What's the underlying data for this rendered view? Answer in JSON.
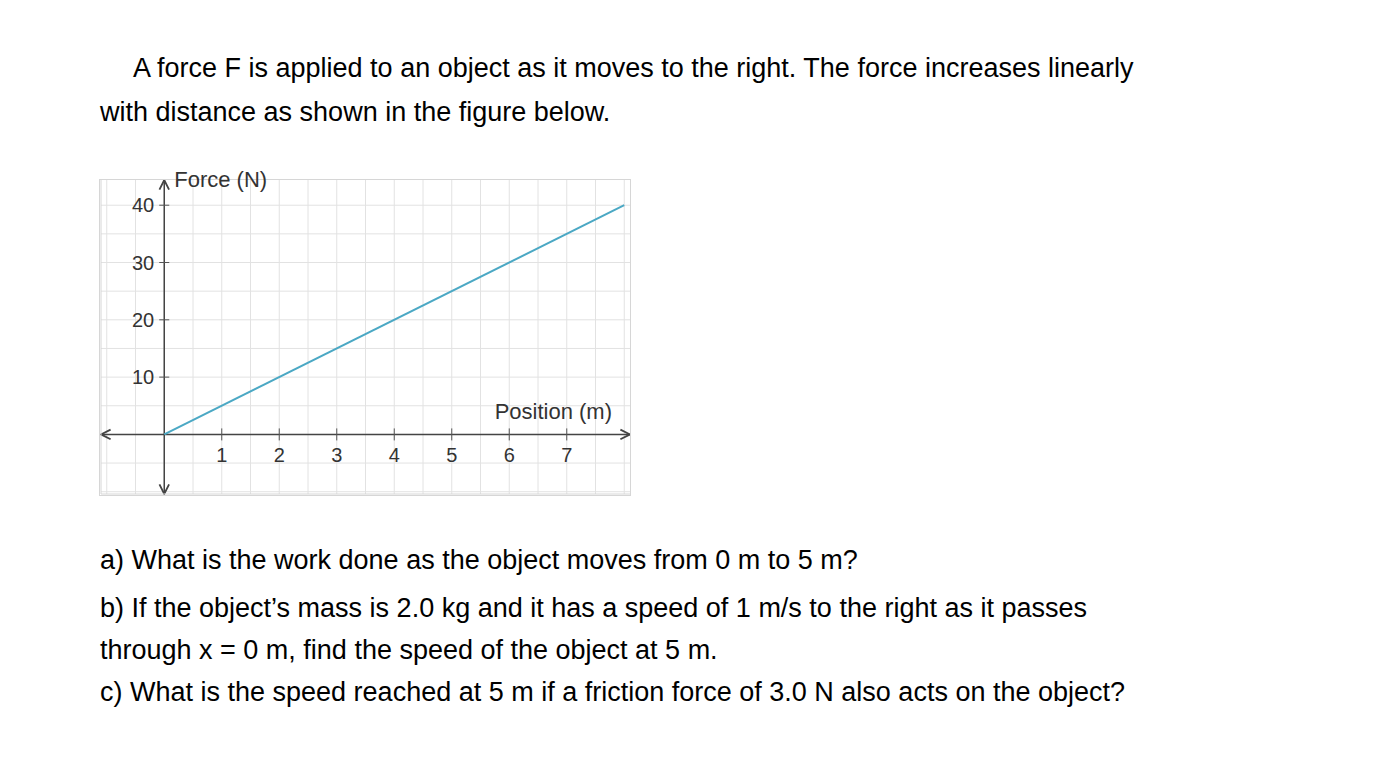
{
  "intro": [
    "A force F is applied to an object as it moves to the right. The force increases linearly",
    "with distance as shown in the figure below."
  ],
  "chart_data": {
    "type": "line",
    "x_label": "Position (m)",
    "y_label": "Force (N)",
    "x": [
      0,
      8
    ],
    "values": [
      0,
      40
    ],
    "color": "#4ba8c4",
    "xlim": [
      -1.1,
      8.1
    ],
    "ylim": [
      -10.4,
      44.4
    ],
    "xticks": [
      1,
      2,
      3,
      4,
      5,
      6,
      7
    ],
    "yticks": [
      10,
      20,
      30,
      40
    ],
    "grid": true
  },
  "questions": [
    [
      "a) What is the work done as the object moves from 0 m to 5 m?"
    ],
    [
      "b) If the object’s mass is 2.0 kg and it has a speed of 1 m/s to the right as it passes",
      "through x = 0 m, find the speed of the object at 5 m."
    ],
    [
      "c) What is the speed reached at 5 m if a friction force of 3.0 N also acts on the object?"
    ]
  ]
}
